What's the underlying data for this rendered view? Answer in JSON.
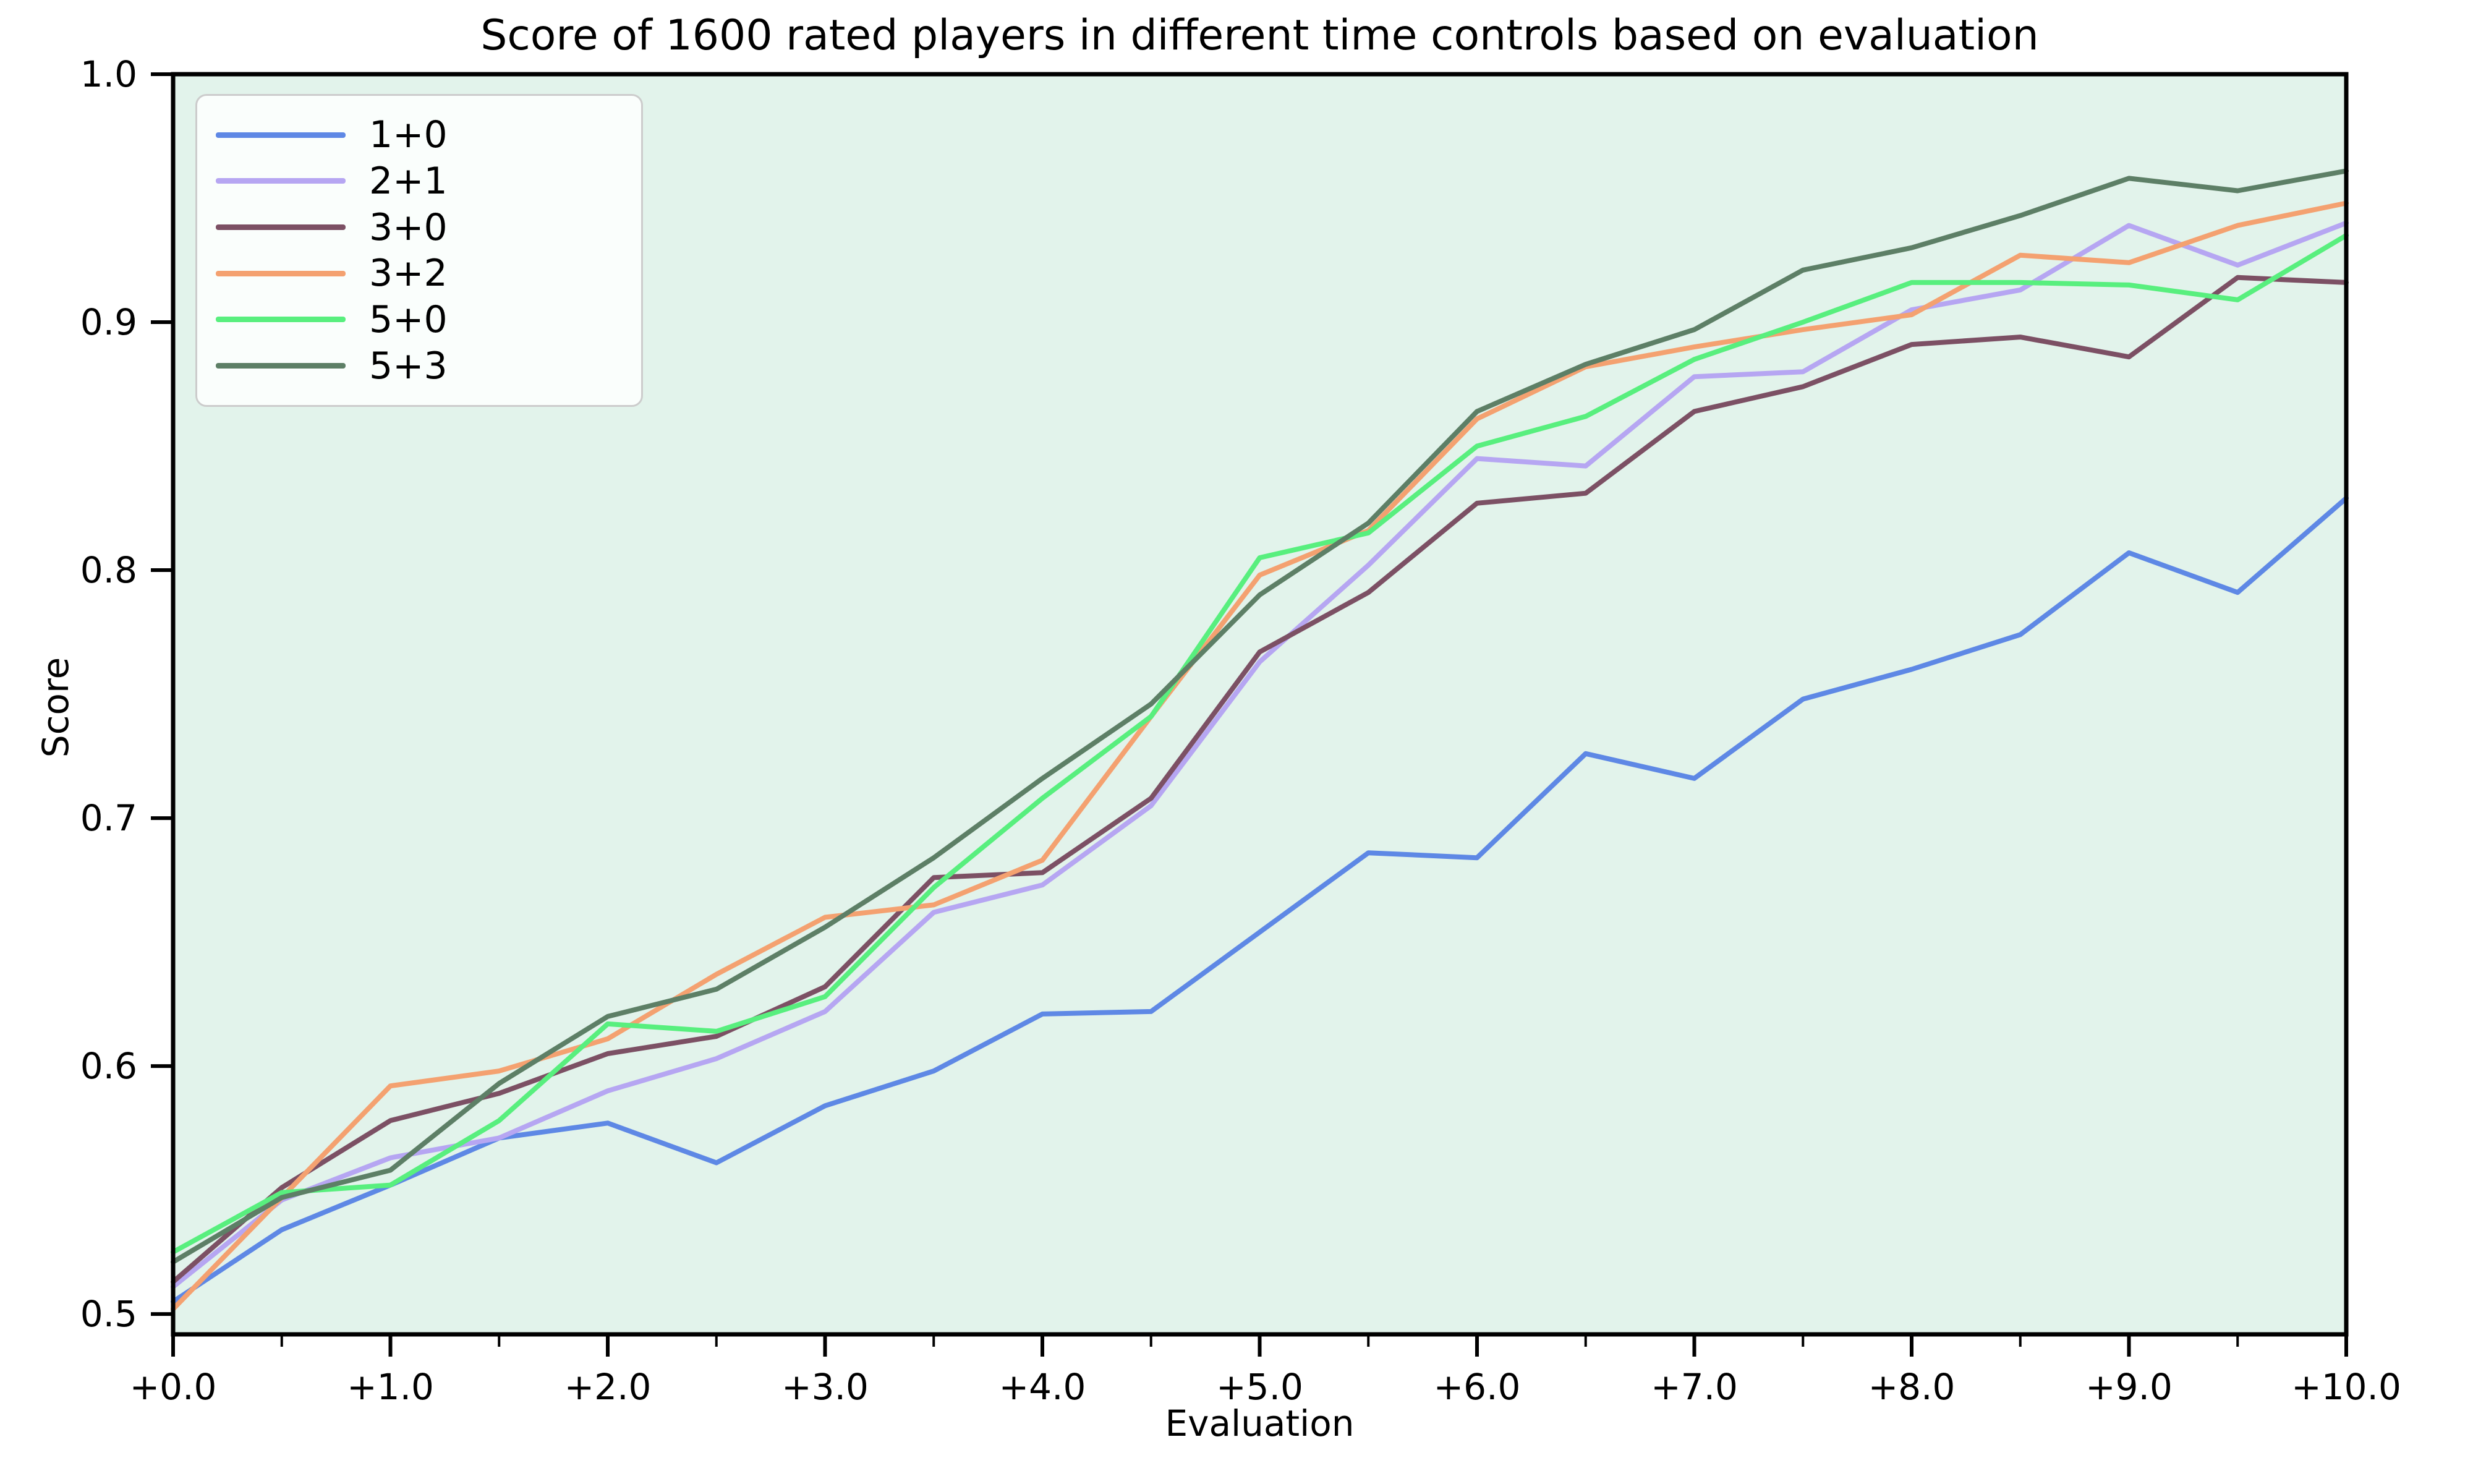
{
  "chart_data": {
    "type": "line",
    "title": "Score of 1600 rated players in different time controls based on evaluation",
    "xlabel": "Evaluation",
    "ylabel": "Score",
    "x": [
      0.0,
      0.5,
      1.0,
      1.5,
      2.0,
      2.5,
      3.0,
      3.5,
      4.0,
      4.5,
      5.0,
      5.5,
      6.0,
      6.5,
      7.0,
      7.5,
      8.0,
      8.5,
      9.0,
      9.5,
      10.0
    ],
    "xtick_values": [
      0,
      1,
      2,
      3,
      4,
      5,
      6,
      7,
      8,
      9,
      10
    ],
    "xtick_labels": [
      "+0.0",
      "+1.0",
      "+2.0",
      "+3.0",
      "+4.0",
      "+5.0",
      "+6.0",
      "+7.0",
      "+8.0",
      "+9.0",
      "+10.0"
    ],
    "ytick_values": [
      0.5,
      0.6,
      0.7,
      0.8,
      0.9,
      1.0
    ],
    "ytick_labels": [
      "0.5",
      "0.6",
      "0.7",
      "0.8",
      "0.9",
      "1.0"
    ],
    "xlim": [
      0.0,
      10.0
    ],
    "ylim": [
      0.4918,
      1.0
    ],
    "grid": false,
    "legend_position": "upper left",
    "plot_bg_color": "#e2f3eb",
    "figure_bg_color": "#ffffff",
    "series": [
      {
        "name": "1+0",
        "color": "#5e88e5",
        "values": [
          0.505,
          0.534,
          0.552,
          0.571,
          0.577,
          0.561,
          0.584,
          0.598,
          0.621,
          0.622,
          0.654,
          0.686,
          0.684,
          0.726,
          0.716,
          0.748,
          0.76,
          0.774,
          0.807,
          0.791,
          0.829
        ]
      },
      {
        "name": "2+1",
        "color": "#b6a6f2",
        "values": [
          0.511,
          0.546,
          0.563,
          0.571,
          0.59,
          0.603,
          0.622,
          0.662,
          0.673,
          0.705,
          0.763,
          0.802,
          0.845,
          0.842,
          0.878,
          0.88,
          0.905,
          0.913,
          0.939,
          0.923,
          0.94
        ]
      },
      {
        "name": "3+0",
        "color": "#7c5064",
        "values": [
          0.513,
          0.551,
          0.578,
          0.589,
          0.605,
          0.612,
          0.632,
          0.676,
          0.678,
          0.708,
          0.767,
          0.791,
          0.827,
          0.831,
          0.864,
          0.874,
          0.891,
          0.894,
          0.886,
          0.918,
          0.916
        ]
      },
      {
        "name": "3+2",
        "color": "#f4a170",
        "values": [
          0.502,
          0.547,
          0.592,
          0.598,
          0.611,
          0.637,
          0.66,
          0.665,
          0.683,
          0.741,
          0.798,
          0.816,
          0.861,
          0.882,
          0.89,
          0.897,
          0.903,
          0.927,
          0.924,
          0.939,
          0.948
        ]
      },
      {
        "name": "5+0",
        "color": "#58ef7e",
        "values": [
          0.525,
          0.549,
          0.552,
          0.578,
          0.617,
          0.614,
          0.628,
          0.672,
          0.708,
          0.741,
          0.805,
          0.815,
          0.85,
          0.862,
          0.885,
          0.9,
          0.916,
          0.916,
          0.915,
          0.909,
          0.935
        ]
      },
      {
        "name": "5+3",
        "color": "#5d7f66",
        "values": [
          0.521,
          0.547,
          0.558,
          0.593,
          0.62,
          0.631,
          0.656,
          0.684,
          0.716,
          0.746,
          0.79,
          0.819,
          0.864,
          0.883,
          0.897,
          0.921,
          0.93,
          0.943,
          0.958,
          0.953,
          0.961
        ]
      }
    ]
  }
}
